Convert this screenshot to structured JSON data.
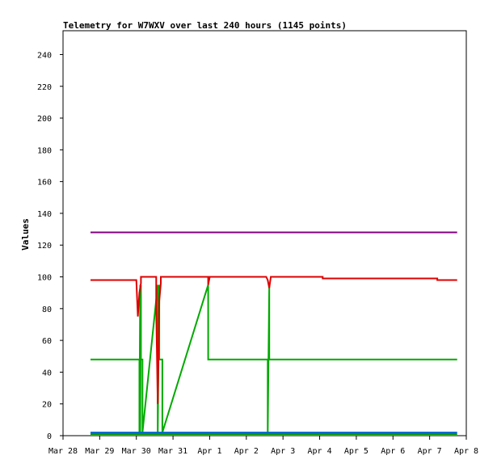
{
  "chart_data": {
    "type": "line",
    "title": "Telemetry for W7WXV over last 240 hours (1145 points)",
    "xlabel": "",
    "ylabel": "Values",
    "xlim": [
      "2020-03-28",
      "2020-04-08"
    ],
    "x_tick_labels": [
      "Mar 28",
      "Mar 29",
      "Mar 30",
      "Mar 31",
      "Apr 1",
      "Apr 2",
      "Apr 3",
      "Apr 4",
      "Apr 5",
      "Apr 6",
      "Apr 7",
      "Apr 8"
    ],
    "ylim": [
      0,
      255
    ],
    "y_ticks": [
      0,
      20,
      40,
      60,
      80,
      100,
      120,
      140,
      160,
      180,
      200,
      220,
      240
    ],
    "grid": false,
    "legend": "none",
    "series": [
      {
        "color": "#800080",
        "x": [
          "2020-03-28 18:00",
          "2020-04-07 18:00"
        ],
        "y": [
          128,
          128
        ]
      },
      {
        "color": "#00aa00",
        "x": [
          "2020-03-28 18:00",
          "2020-03-30 02:00",
          "2020-03-30 02:00",
          "2020-03-30 02:30",
          "2020-03-30 02:30",
          "2020-03-30 03:00",
          "2020-03-30 03:00",
          "2020-03-30 04:00",
          "2020-03-30 04:00",
          "2020-03-30 14:00",
          "2020-03-30 14:00",
          "2020-03-30 15:00",
          "2020-03-30 15:00",
          "2020-03-30 17:00",
          "2020-03-30 17:00",
          "2020-03-31 23:00",
          "2020-03-31 23:00",
          "2020-04-01 00:00",
          "2020-04-01 00:00",
          "2020-04-02 14:00",
          "2020-04-02 14:00",
          "2020-04-02 15:00",
          "2020-04-02 15:00",
          "2020-04-07 18:00"
        ],
        "y": [
          48,
          48,
          2,
          95,
          2,
          95,
          48,
          48,
          2,
          95,
          2,
          95,
          48,
          48,
          2,
          95,
          48,
          48,
          48,
          48,
          2,
          95,
          48,
          48
        ]
      },
      {
        "color": "#dd0000",
        "x": [
          "2020-03-28 18:00",
          "2020-03-30 00:00",
          "2020-03-30 01:00",
          "2020-03-30 02:00",
          "2020-03-30 03:00",
          "2020-03-30 03:00",
          "2020-03-30 13:00",
          "2020-03-30 13:00",
          "2020-03-30 14:00",
          "2020-03-30 15:00",
          "2020-03-30 16:00",
          "2020-03-30 16:00",
          "2020-03-31 23:00",
          "2020-03-31 23:00",
          "2020-04-01 00:00",
          "2020-04-02 13:00",
          "2020-04-02 14:00",
          "2020-04-02 15:00",
          "2020-04-02 16:00",
          "2020-04-04 02:00",
          "2020-04-04 02:00",
          "2020-04-07 05:00",
          "2020-04-07 05:00",
          "2020-04-07 18:00"
        ],
        "y": [
          98,
          98,
          75,
          90,
          96,
          100,
          100,
          80,
          20,
          85,
          96,
          100,
          100,
          95,
          100,
          100,
          98,
          93,
          100,
          100,
          99,
          99,
          98,
          98
        ]
      },
      {
        "color": "#0066cc",
        "x": [
          "2020-03-28 18:00",
          "2020-04-07 18:00"
        ],
        "y": [
          2,
          2
        ]
      },
      {
        "color": "#009900",
        "x": [
          "2020-03-28 18:00",
          "2020-04-07 18:00"
        ],
        "y": [
          1,
          1
        ]
      }
    ]
  }
}
